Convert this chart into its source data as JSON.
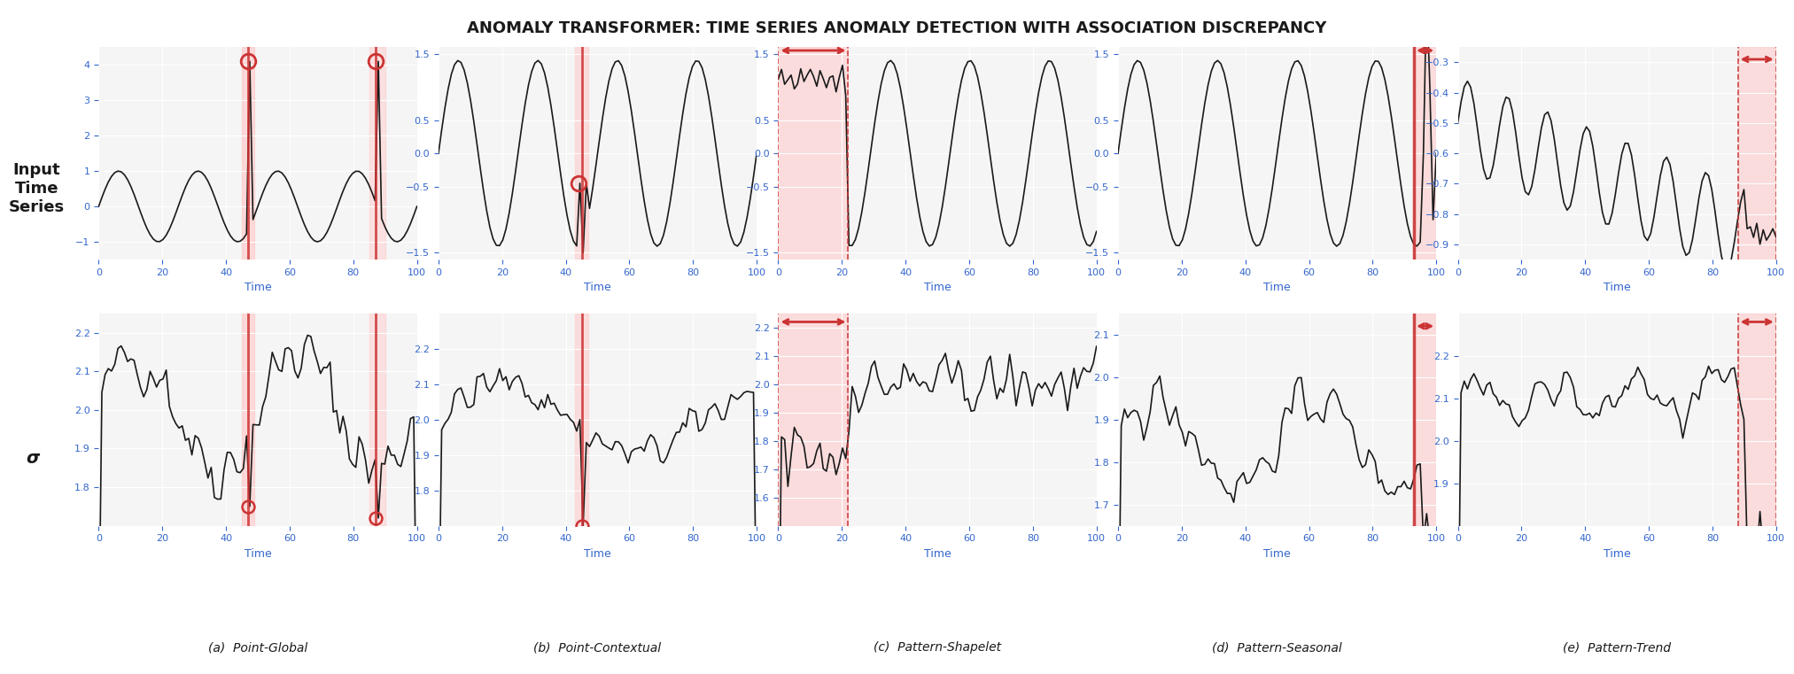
{
  "title": "ANOMALY TRANSFORMER: TIME SERIES ANOMALY DETECTION WITH ASSOCIATION DISCREPANCY",
  "panel_titles": [
    "(a)  Point-Global",
    "(b)  Point-Contextual",
    "(c)  Pattern-Shapelet",
    "(d)  Pattern-Seasonal",
    "(e)  Pattern-Trend"
  ],
  "row_labels": [
    "Input\nTime\nSeries",
    "σ"
  ],
  "fig_bg": "#ffffff",
  "axes_bg": "#f5f5f5",
  "line_color": "#1a1a1a",
  "anomaly_fill_color": "#ffcccc",
  "anomaly_line_color": "#cc3333",
  "circle_color": "#cc3333",
  "bracket_color": "#cc3333"
}
